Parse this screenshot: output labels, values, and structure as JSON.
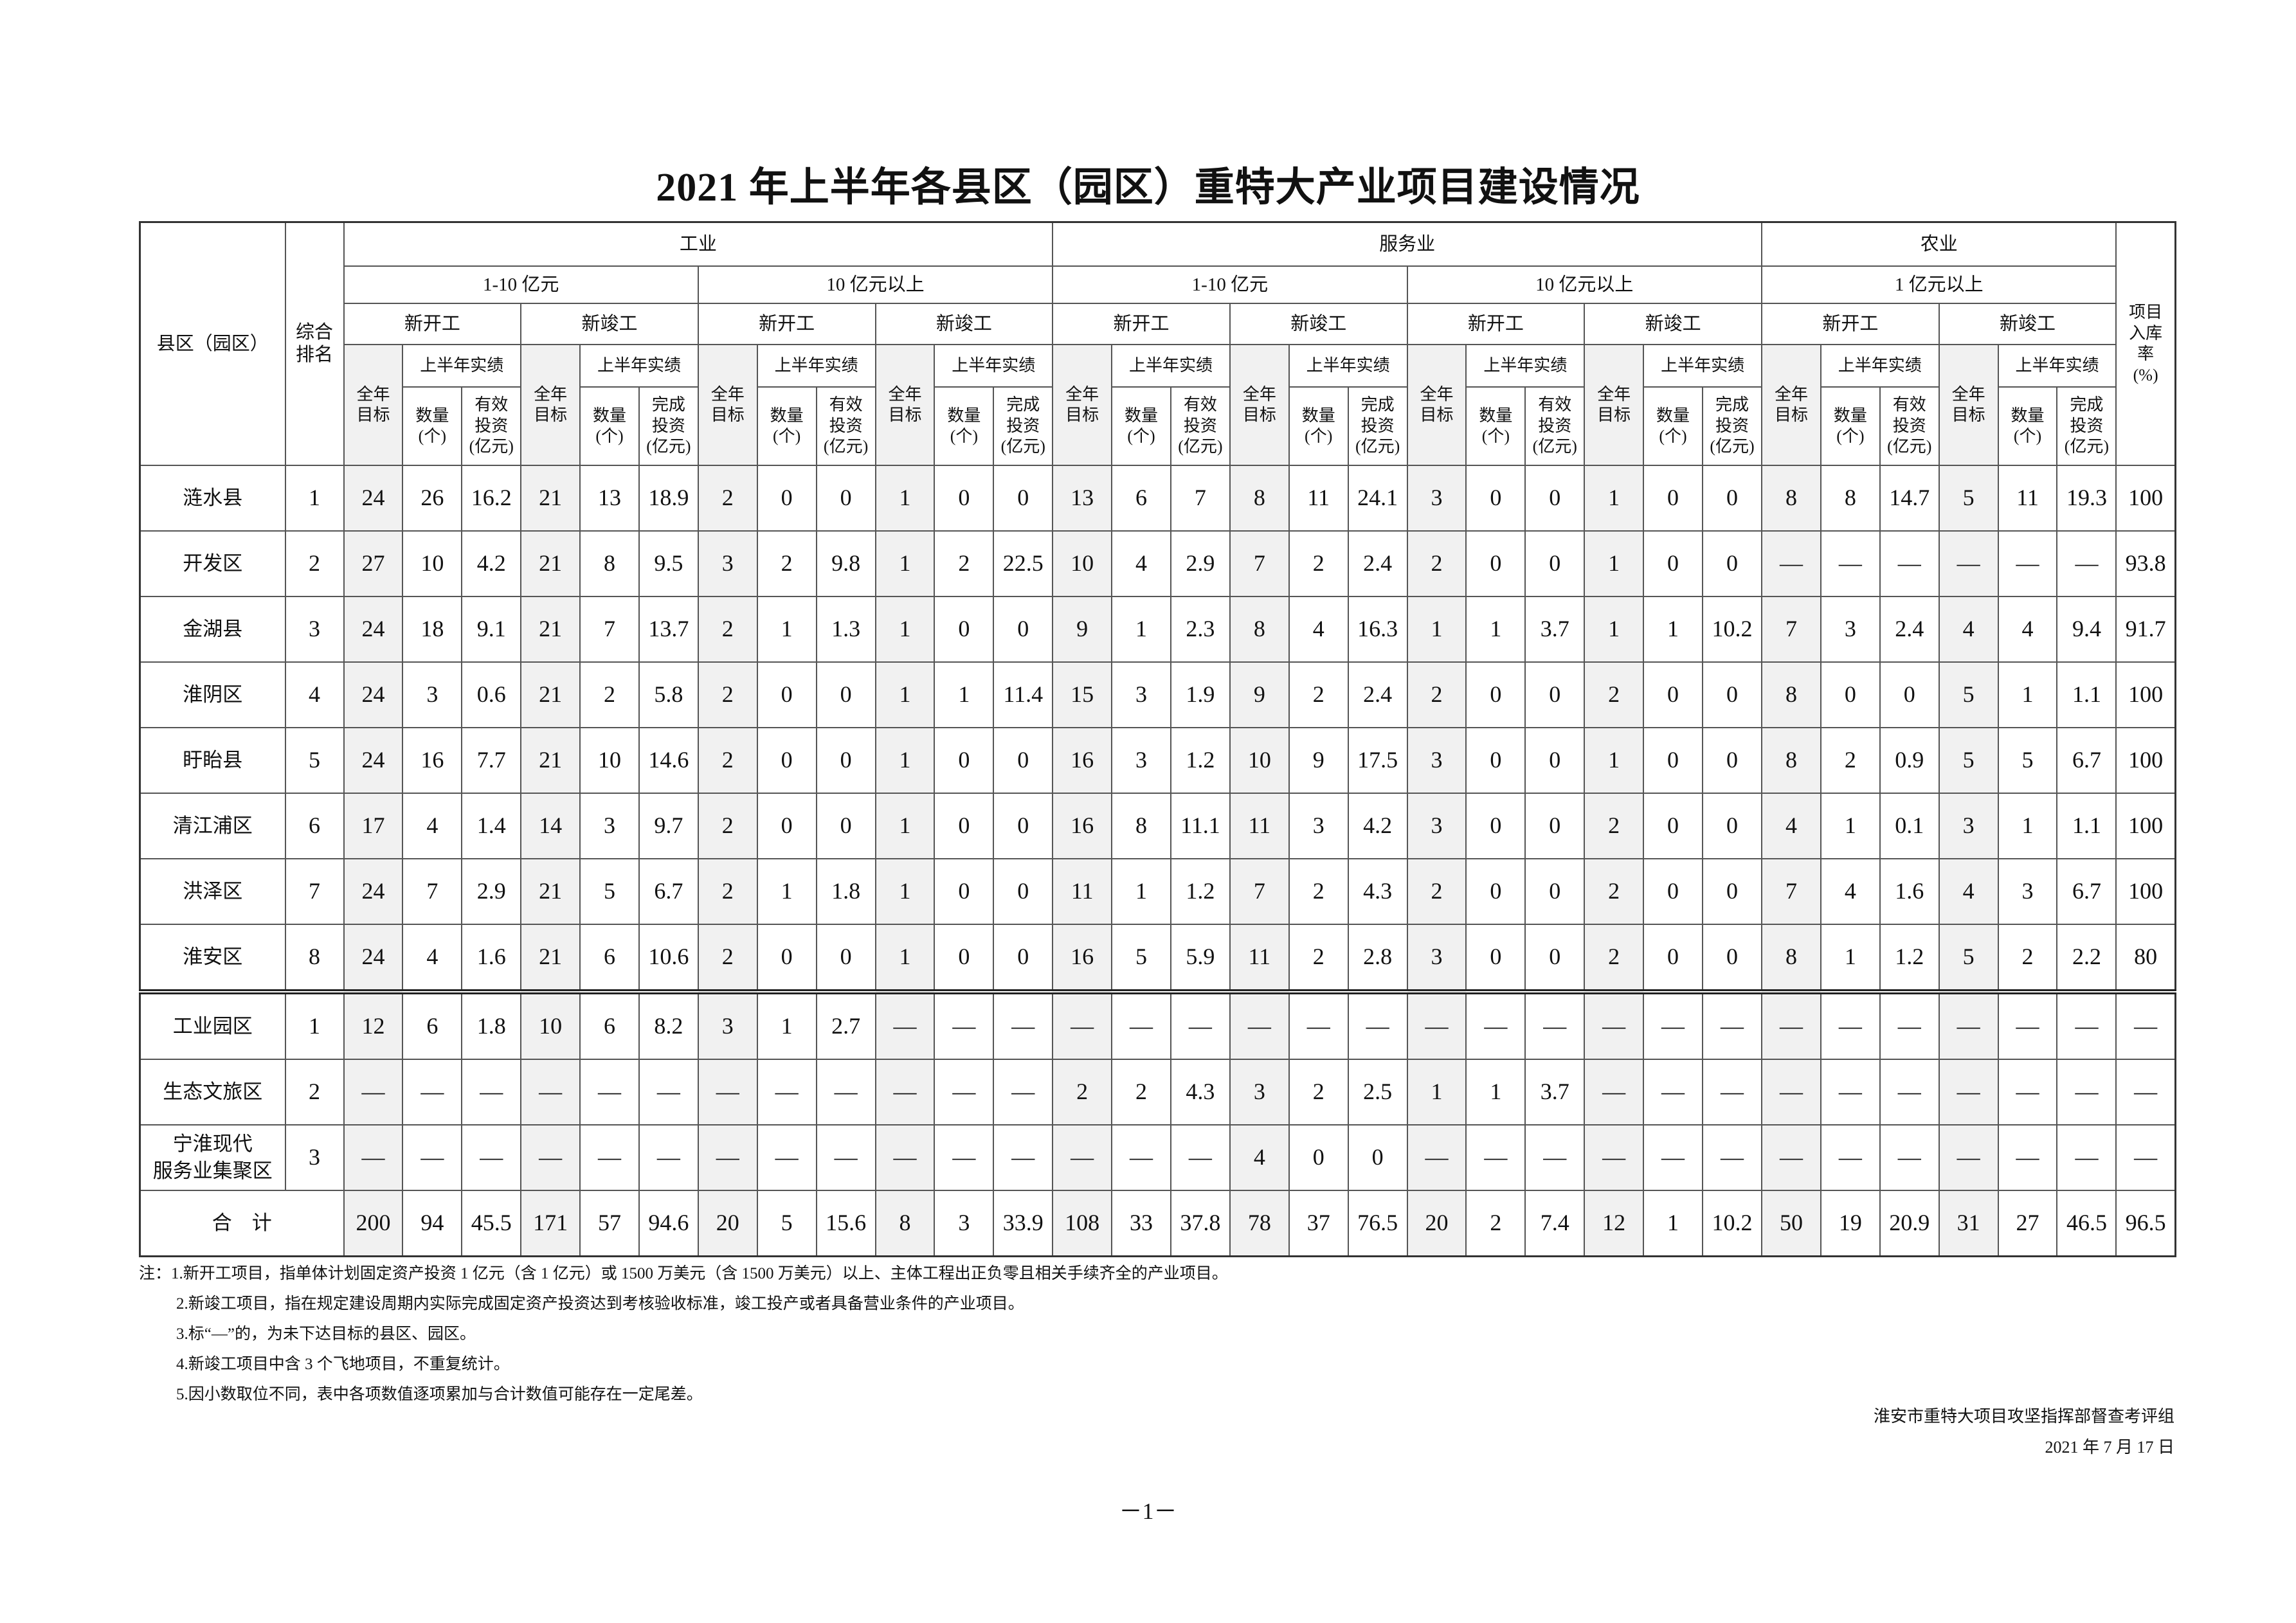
{
  "title": "2021 年上半年各县区（园区）重特大产业项目建设情况",
  "header": {
    "region_label": "县区（园区）",
    "rank_label": "综合\n排名",
    "rate_label": "项目\n入库\n率\n(%)",
    "target_label": "全年\n目标",
    "actual_label": "上半年实绩",
    "count_label": "数量\n(个)",
    "sectors": [
      {
        "name": "工业",
        "tiers": [
          {
            "name": "1-10 亿元",
            "stages": [
              {
                "name": "新开工",
                "invest": "有效\n投资\n(亿元)"
              },
              {
                "name": "新竣工",
                "invest": "完成\n投资\n(亿元)"
              }
            ]
          },
          {
            "name": "10 亿元以上",
            "stages": [
              {
                "name": "新开工",
                "invest": "有效\n投资\n(亿元)"
              },
              {
                "name": "新竣工",
                "invest": "完成\n投资\n(亿元)"
              }
            ]
          }
        ]
      },
      {
        "name": "服务业",
        "tiers": [
          {
            "name": "1-10 亿元",
            "stages": [
              {
                "name": "新开工",
                "invest": "有效\n投资\n(亿元)"
              },
              {
                "name": "新竣工",
                "invest": "完成\n投资\n(亿元)"
              }
            ]
          },
          {
            "name": "10 亿元以上",
            "stages": [
              {
                "name": "新开工",
                "invest": "有效\n投资\n(亿元)"
              },
              {
                "name": "新竣工",
                "invest": "完成\n投资\n(亿元)"
              }
            ]
          }
        ]
      },
      {
        "name": "农业",
        "tiers": [
          {
            "name": "1 亿元以上",
            "stages": [
              {
                "name": "新开工",
                "invest": "有效\n投资\n(亿元)"
              },
              {
                "name": "新竣工",
                "invest": "完成\n投资\n(亿元)"
              }
            ]
          }
        ]
      }
    ]
  },
  "county_rows": [
    {
      "name": "涟水县",
      "rank": "1",
      "values": [
        "24",
        "26",
        "16.2",
        "21",
        "13",
        "18.9",
        "2",
        "0",
        "0",
        "1",
        "0",
        "0",
        "13",
        "6",
        "7",
        "8",
        "11",
        "24.1",
        "3",
        "0",
        "0",
        "1",
        "0",
        "0",
        "8",
        "8",
        "14.7",
        "5",
        "11",
        "19.3",
        "100"
      ]
    },
    {
      "name": "开发区",
      "rank": "2",
      "values": [
        "27",
        "10",
        "4.2",
        "21",
        "8",
        "9.5",
        "3",
        "2",
        "9.8",
        "1",
        "2",
        "22.5",
        "10",
        "4",
        "2.9",
        "7",
        "2",
        "2.4",
        "2",
        "0",
        "0",
        "1",
        "0",
        "0",
        "—",
        "—",
        "—",
        "—",
        "—",
        "—",
        "93.8"
      ]
    },
    {
      "name": "金湖县",
      "rank": "3",
      "values": [
        "24",
        "18",
        "9.1",
        "21",
        "7",
        "13.7",
        "2",
        "1",
        "1.3",
        "1",
        "0",
        "0",
        "9",
        "1",
        "2.3",
        "8",
        "4",
        "16.3",
        "1",
        "1",
        "3.7",
        "1",
        "1",
        "10.2",
        "7",
        "3",
        "2.4",
        "4",
        "4",
        "9.4",
        "91.7"
      ]
    },
    {
      "name": "淮阴区",
      "rank": "4",
      "values": [
        "24",
        "3",
        "0.6",
        "21",
        "2",
        "5.8",
        "2",
        "0",
        "0",
        "1",
        "1",
        "11.4",
        "15",
        "3",
        "1.9",
        "9",
        "2",
        "2.4",
        "2",
        "0",
        "0",
        "2",
        "0",
        "0",
        "8",
        "0",
        "0",
        "5",
        "1",
        "1.1",
        "100"
      ]
    },
    {
      "name": "盱眙县",
      "rank": "5",
      "values": [
        "24",
        "16",
        "7.7",
        "21",
        "10",
        "14.6",
        "2",
        "0",
        "0",
        "1",
        "0",
        "0",
        "16",
        "3",
        "1.2",
        "10",
        "9",
        "17.5",
        "3",
        "0",
        "0",
        "1",
        "0",
        "0",
        "8",
        "2",
        "0.9",
        "5",
        "5",
        "6.7",
        "100"
      ]
    },
    {
      "name": "清江浦区",
      "rank": "6",
      "values": [
        "17",
        "4",
        "1.4",
        "14",
        "3",
        "9.7",
        "2",
        "0",
        "0",
        "1",
        "0",
        "0",
        "16",
        "8",
        "11.1",
        "11",
        "3",
        "4.2",
        "3",
        "0",
        "0",
        "2",
        "0",
        "0",
        "4",
        "1",
        "0.1",
        "3",
        "1",
        "1.1",
        "100"
      ]
    },
    {
      "name": "洪泽区",
      "rank": "7",
      "values": [
        "24",
        "7",
        "2.9",
        "21",
        "5",
        "6.7",
        "2",
        "1",
        "1.8",
        "1",
        "0",
        "0",
        "11",
        "1",
        "1.2",
        "7",
        "2",
        "4.3",
        "2",
        "0",
        "0",
        "2",
        "0",
        "0",
        "7",
        "4",
        "1.6",
        "4",
        "3",
        "6.7",
        "100"
      ]
    },
    {
      "name": "淮安区",
      "rank": "8",
      "values": [
        "24",
        "4",
        "1.6",
        "21",
        "6",
        "10.6",
        "2",
        "0",
        "0",
        "1",
        "0",
        "0",
        "16",
        "5",
        "5.9",
        "11",
        "2",
        "2.8",
        "3",
        "0",
        "0",
        "2",
        "0",
        "0",
        "8",
        "1",
        "1.2",
        "5",
        "2",
        "2.2",
        "80"
      ]
    }
  ],
  "park_rows": [
    {
      "name": "工业园区",
      "rank": "1",
      "values": [
        "12",
        "6",
        "1.8",
        "10",
        "6",
        "8.2",
        "3",
        "1",
        "2.7",
        "—",
        "—",
        "—",
        "—",
        "—",
        "—",
        "—",
        "—",
        "—",
        "—",
        "—",
        "—",
        "—",
        "—",
        "—",
        "—",
        "—",
        "—",
        "—",
        "—",
        "—",
        "—"
      ]
    },
    {
      "name": "生态文旅区",
      "rank": "2",
      "values": [
        "—",
        "—",
        "—",
        "—",
        "—",
        "—",
        "—",
        "—",
        "—",
        "—",
        "—",
        "—",
        "2",
        "2",
        "4.3",
        "3",
        "2",
        "2.5",
        "1",
        "1",
        "3.7",
        "—",
        "—",
        "—",
        "—",
        "—",
        "—",
        "—",
        "—",
        "—",
        "—"
      ]
    },
    {
      "name": "宁淮现代\n服务业集聚区",
      "rank": "3",
      "values": [
        "—",
        "—",
        "—",
        "—",
        "—",
        "—",
        "—",
        "—",
        "—",
        "—",
        "—",
        "—",
        "—",
        "—",
        "—",
        "4",
        "0",
        "0",
        "—",
        "—",
        "—",
        "—",
        "—",
        "—",
        "—",
        "—",
        "—",
        "—",
        "—",
        "—",
        "—"
      ]
    }
  ],
  "total_row": {
    "name": "合　计",
    "values": [
      "200",
      "94",
      "45.5",
      "171",
      "57",
      "94.6",
      "20",
      "5",
      "15.6",
      "8",
      "3",
      "33.9",
      "108",
      "33",
      "37.8",
      "78",
      "37",
      "76.5",
      "20",
      "2",
      "7.4",
      "12",
      "1",
      "10.2",
      "50",
      "19",
      "20.9",
      "31",
      "27",
      "46.5",
      "96.5"
    ]
  },
  "notes": [
    "注：1.新开工项目，指单体计划固定资产投资 1 亿元（含 1 亿元）或 1500 万美元（含 1500 万美元）以上、主体工程出正负零且相关手续齐全的产业项目。",
    "2.新竣工项目，指在规定建设周期内实际完成固定资产投资达到考核验收标准，竣工投产或者具备营业条件的产业项目。",
    "3.标“—”的，为未下达目标的县区、园区。",
    "4.新竣工项目中含 3 个飞地项目，不重复统计。",
    "5.因小数取位不同，表中各项数值逐项累加与合计数值可能存在一定尾差。"
  ],
  "signature": {
    "org": "淮安市重特大项目攻坚指挥部督查考评组",
    "date": "2021 年 7 月 17 日"
  },
  "page_number": "－1－",
  "colors": {
    "target_column_shade": "#f1f1f1"
  }
}
